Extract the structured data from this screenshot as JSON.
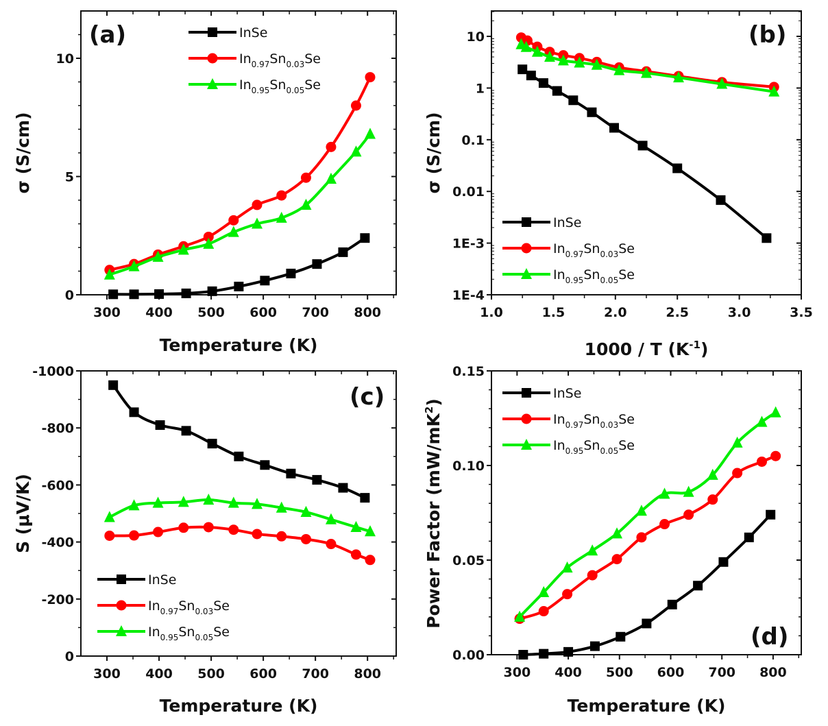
{
  "chart_data": [
    {
      "id": "a",
      "type": "line",
      "panel_label": "(a)",
      "xlabel": "Temperature (K)",
      "ylabel": "σ (S/cm)",
      "xlim": [
        250,
        855
      ],
      "ylim": [
        0,
        12
      ],
      "yscale": "linear",
      "y_inverted": false,
      "xticks": [
        300,
        400,
        500,
        600,
        700,
        800
      ],
      "xtick_labels": [
        "300",
        "400",
        "500",
        "600",
        "700",
        "800"
      ],
      "xminor": [
        350,
        450,
        550,
        650,
        750,
        850
      ],
      "yticks": [
        0,
        5,
        10
      ],
      "ytick_labels": [
        "0",
        "5",
        "10"
      ],
      "yminor": [
        1,
        2,
        3,
        4,
        6,
        7,
        8,
        9,
        11
      ],
      "legend_position": "top-center",
      "grid": false,
      "series": [
        {
          "name": "InSe",
          "name_parts": [
            "In",
            "",
            "Se",
            ""
          ],
          "color": "#000000",
          "marker": "square",
          "x": [
            312,
            352,
            400,
            452,
            502,
            553,
            603,
            653,
            703,
            753,
            795
          ],
          "y": [
            0.02,
            0.02,
            0.03,
            0.06,
            0.15,
            0.35,
            0.6,
            0.9,
            1.3,
            1.8,
            2.4
          ]
        },
        {
          "name": "In0.97Sn0.03Se",
          "name_parts": [
            "In",
            "0.97",
            "Sn",
            "0.03"
          ],
          "color": "#ff0000",
          "marker": "circle",
          "x": [
            305,
            352,
            398,
            447,
            495,
            543,
            588,
            635,
            682,
            730,
            778,
            805
          ],
          "y": [
            1.05,
            1.3,
            1.7,
            2.05,
            2.45,
            3.15,
            3.8,
            4.2,
            4.95,
            6.25,
            8.0,
            9.2
          ]
        },
        {
          "name": "In0.95Sn0.05Se",
          "name_parts": [
            "In",
            "0.95",
            "Sn",
            "0.05"
          ],
          "color": "#00ee00",
          "marker": "triangle",
          "x": [
            305,
            352,
            398,
            447,
            495,
            543,
            588,
            635,
            682,
            730,
            778,
            805
          ],
          "y": [
            0.85,
            1.2,
            1.6,
            1.9,
            2.15,
            2.65,
            3.0,
            3.25,
            3.8,
            4.9,
            6.05,
            6.8
          ]
        }
      ]
    },
    {
      "id": "b",
      "type": "line",
      "panel_label": "(b)",
      "xlabel": "1000 / T (K",
      "xlabel_sup": "-1",
      "xlabel_end": ")",
      "ylabel": "σ (S/cm)",
      "xlim": [
        1.0,
        3.5
      ],
      "ylim": [
        0.0001,
        31
      ],
      "yscale": "log",
      "y_inverted": false,
      "xticks": [
        1.0,
        1.5,
        2.0,
        2.5,
        3.0,
        3.5
      ],
      "xtick_labels": [
        "1.0",
        "1.5",
        "2.0",
        "2.5",
        "3.0",
        "3.5"
      ],
      "xminor": [
        1.25,
        1.75,
        2.25,
        2.75,
        3.25
      ],
      "yticks": [
        0.0001,
        0.001,
        0.01,
        0.1,
        1,
        10
      ],
      "ytick_labels": [
        "1E-4",
        "1E-3",
        "0.01",
        "0.1",
        "1",
        "10"
      ],
      "legend_position": "bottom-left",
      "grid": false,
      "series": [
        {
          "name": "InSe",
          "name_parts": [
            "In",
            "",
            "Se",
            ""
          ],
          "color": "#000000",
          "marker": "square",
          "x": [
            1.25,
            1.32,
            1.42,
            1.53,
            1.66,
            1.81,
            1.99,
            2.22,
            2.5,
            2.85,
            3.22
          ],
          "y": [
            2.3,
            1.75,
            1.25,
            0.88,
            0.58,
            0.34,
            0.17,
            0.077,
            0.028,
            0.0068,
            0.00125
          ]
        },
        {
          "name": "In0.97Sn0.03Se",
          "name_parts": [
            "In",
            "0.97",
            "Sn",
            "0.03"
          ],
          "color": "#ff0000",
          "marker": "circle",
          "x": [
            1.24,
            1.29,
            1.37,
            1.47,
            1.58,
            1.71,
            1.85,
            2.03,
            2.25,
            2.51,
            2.86,
            3.28
          ],
          "y": [
            9.5,
            8.3,
            6.3,
            5.0,
            4.3,
            3.8,
            3.2,
            2.5,
            2.1,
            1.7,
            1.3,
            1.05
          ]
        },
        {
          "name": "In0.95Sn0.05Se",
          "name_parts": [
            "In",
            "0.95",
            "Sn",
            "0.05"
          ],
          "color": "#00ee00",
          "marker": "triangle",
          "x": [
            1.24,
            1.28,
            1.37,
            1.47,
            1.58,
            1.71,
            1.85,
            2.03,
            2.25,
            2.51,
            2.86,
            3.28
          ],
          "y": [
            7.0,
            6.2,
            5.0,
            4.0,
            3.4,
            3.1,
            2.8,
            2.2,
            1.95,
            1.6,
            1.2,
            0.85
          ]
        }
      ]
    },
    {
      "id": "c",
      "type": "line",
      "panel_label": "(c)",
      "xlabel": "Temperature (K)",
      "ylabel": "S (μV/K)",
      "xlim": [
        250,
        855
      ],
      "ylim": [
        0,
        -1000
      ],
      "yscale": "linear",
      "y_inverted": true,
      "xticks": [
        300,
        400,
        500,
        600,
        700,
        800
      ],
      "xtick_labels": [
        "300",
        "400",
        "500",
        "600",
        "700",
        "800"
      ],
      "xminor": [
        350,
        450,
        550,
        650,
        750,
        850
      ],
      "yticks": [
        0,
        -200,
        -400,
        -600,
        -800,
        -1000
      ],
      "ytick_labels": [
        "0",
        "-200",
        "-400",
        "-600",
        "-800",
        "-1000"
      ],
      "yminor": [
        -100,
        -300,
        -500,
        -700,
        -900
      ],
      "legend_position": "bottom-left",
      "grid": false,
      "series": [
        {
          "name": "InSe",
          "name_parts": [
            "In",
            "",
            "Se",
            ""
          ],
          "color": "#000000",
          "marker": "square",
          "x": [
            312,
            352,
            402,
            452,
            502,
            553,
            603,
            653,
            703,
            753,
            795
          ],
          "y": [
            -950,
            -855,
            -810,
            -790,
            -745,
            -700,
            -670,
            -640,
            -618,
            -590,
            -555
          ]
        },
        {
          "name": "In0.97Sn0.03Se",
          "name_parts": [
            "In",
            "0.97",
            "Sn",
            "0.03"
          ],
          "color": "#ff0000",
          "marker": "circle",
          "x": [
            305,
            352,
            398,
            447,
            495,
            543,
            588,
            635,
            682,
            730,
            778,
            805
          ],
          "y": [
            -422,
            -423,
            -435,
            -450,
            -452,
            -443,
            -428,
            -420,
            -410,
            -393,
            -356,
            -337
          ]
        },
        {
          "name": "In0.95Sn0.05Se",
          "name_parts": [
            "In",
            "0.95",
            "Sn",
            "0.05"
          ],
          "color": "#00ee00",
          "marker": "triangle",
          "x": [
            305,
            352,
            398,
            447,
            495,
            543,
            588,
            635,
            682,
            730,
            778,
            805
          ],
          "y": [
            -487,
            -528,
            -537,
            -540,
            -548,
            -537,
            -533,
            -520,
            -505,
            -479,
            -452,
            -437
          ]
        }
      ]
    },
    {
      "id": "d",
      "type": "line",
      "panel_label": "(d)",
      "xlabel": "Temperature (K)",
      "ylabel": "Power Factor (mW/mK",
      "ylabel_sup": "2",
      "ylabel_end": ")",
      "xlim": [
        250,
        855
      ],
      "ylim": [
        0,
        0.15
      ],
      "yscale": "linear",
      "y_inverted": false,
      "xticks": [
        300,
        400,
        500,
        600,
        700,
        800
      ],
      "xtick_labels": [
        "300",
        "400",
        "500",
        "600",
        "700",
        "800"
      ],
      "xminor": [
        350,
        450,
        550,
        650,
        750,
        850
      ],
      "yticks": [
        0,
        0.05,
        0.1,
        0.15
      ],
      "ytick_labels": [
        "0.00",
        "0.05",
        "0.10",
        "0.15"
      ],
      "yminor": [
        0.01,
        0.02,
        0.03,
        0.04,
        0.06,
        0.07,
        0.08,
        0.09,
        0.11,
        0.12,
        0.13,
        0.14
      ],
      "legend_position": "top-left",
      "grid": false,
      "series": [
        {
          "name": "InSe",
          "name_parts": [
            "In",
            "",
            "Se",
            ""
          ],
          "color": "#000000",
          "marker": "square",
          "x": [
            312,
            352,
            400,
            452,
            502,
            553,
            603,
            653,
            703,
            753,
            795
          ],
          "y": [
            0.0,
            0.0005,
            0.0015,
            0.0045,
            0.0095,
            0.0165,
            0.0265,
            0.0365,
            0.049,
            0.062,
            0.074
          ]
        },
        {
          "name": "In0.97Sn0.03Se",
          "name_parts": [
            "In",
            "0.97",
            "Sn",
            "0.03"
          ],
          "color": "#ff0000",
          "marker": "circle",
          "x": [
            305,
            352,
            398,
            447,
            495,
            543,
            588,
            635,
            682,
            730,
            778,
            805
          ],
          "y": [
            0.019,
            0.023,
            0.032,
            0.042,
            0.0505,
            0.062,
            0.069,
            0.074,
            0.082,
            0.096,
            0.102,
            0.105
          ]
        },
        {
          "name": "In0.95Sn0.05Se",
          "name_parts": [
            "In",
            "0.95",
            "Sn",
            "0.05"
          ],
          "color": "#00ee00",
          "marker": "triangle",
          "x": [
            305,
            352,
            398,
            447,
            495,
            543,
            588,
            635,
            682,
            730,
            778,
            805
          ],
          "y": [
            0.02,
            0.033,
            0.046,
            0.055,
            0.064,
            0.076,
            0.085,
            0.086,
            0.095,
            0.112,
            0.123,
            0.128
          ]
        }
      ]
    }
  ]
}
